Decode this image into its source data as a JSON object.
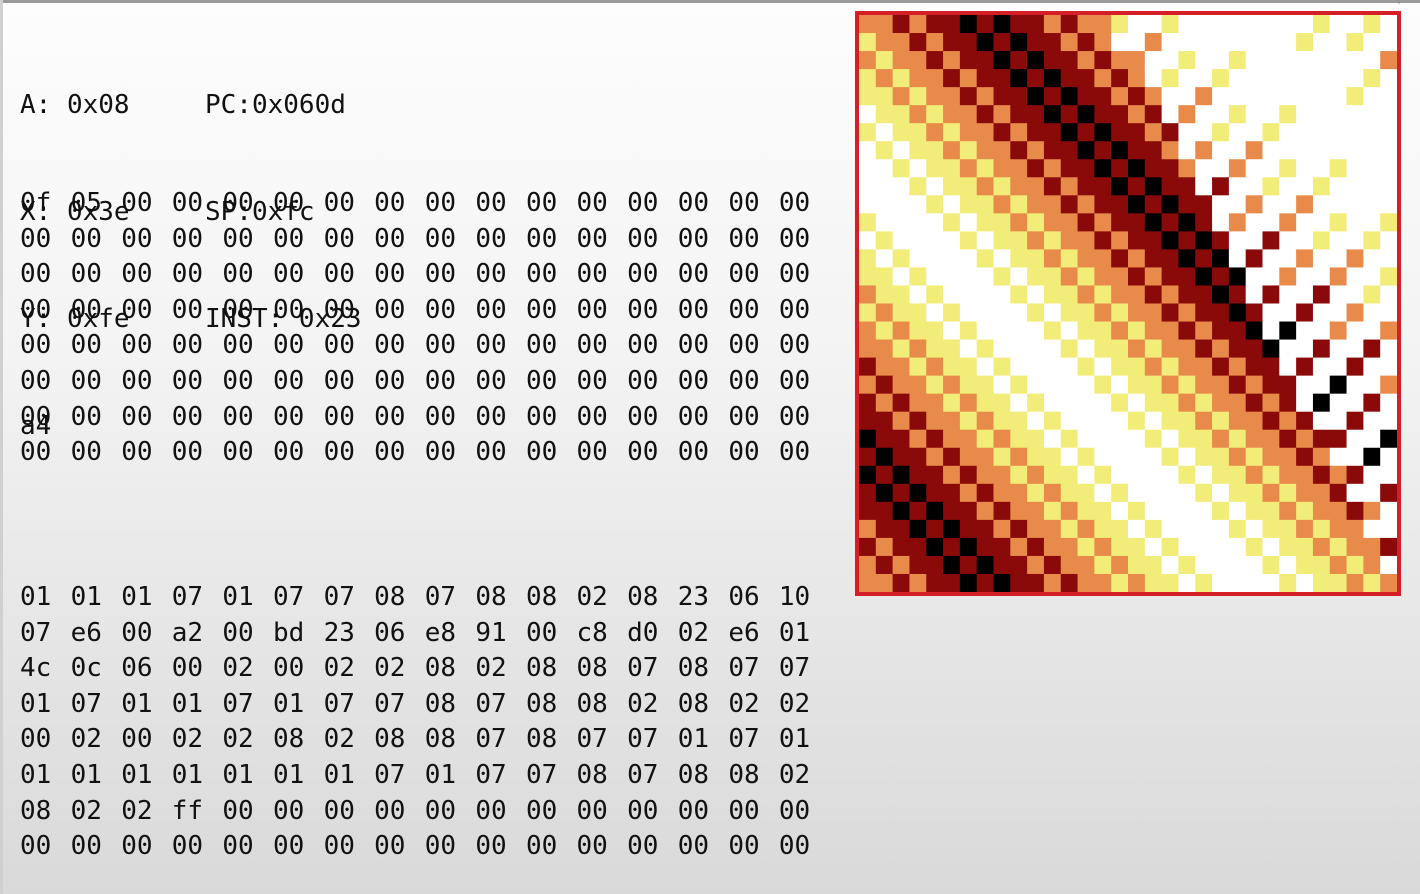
{
  "registers": {
    "a_label": "A: 0x08",
    "pc_label": "PC:0x060d",
    "x_label": "X: 0x3e",
    "sp_label": "SP:0xfc",
    "y_label": "Y: 0xfe",
    "inst_label": "INST: 0x23",
    "inst_cont": "a4"
  },
  "zero_page": [
    [
      "0f",
      "05",
      "00",
      "00",
      "00",
      "00",
      "00",
      "00",
      "00",
      "00",
      "00",
      "00",
      "00",
      "00",
      "00",
      "00"
    ],
    [
      "00",
      "00",
      "00",
      "00",
      "00",
      "00",
      "00",
      "00",
      "00",
      "00",
      "00",
      "00",
      "00",
      "00",
      "00",
      "00"
    ],
    [
      "00",
      "00",
      "00",
      "00",
      "00",
      "00",
      "00",
      "00",
      "00",
      "00",
      "00",
      "00",
      "00",
      "00",
      "00",
      "00"
    ],
    [
      "00",
      "00",
      "00",
      "00",
      "00",
      "00",
      "00",
      "00",
      "00",
      "00",
      "00",
      "00",
      "00",
      "00",
      "00",
      "00"
    ],
    [
      "00",
      "00",
      "00",
      "00",
      "00",
      "00",
      "00",
      "00",
      "00",
      "00",
      "00",
      "00",
      "00",
      "00",
      "00",
      "00"
    ],
    [
      "00",
      "00",
      "00",
      "00",
      "00",
      "00",
      "00",
      "00",
      "00",
      "00",
      "00",
      "00",
      "00",
      "00",
      "00",
      "00"
    ],
    [
      "00",
      "00",
      "00",
      "00",
      "00",
      "00",
      "00",
      "00",
      "00",
      "00",
      "00",
      "00",
      "00",
      "00",
      "00",
      "00"
    ],
    [
      "00",
      "00",
      "00",
      "00",
      "00",
      "00",
      "00",
      "00",
      "00",
      "00",
      "00",
      "00",
      "00",
      "00",
      "00",
      "00"
    ]
  ],
  "program_memory": [
    [
      "01",
      "01",
      "01",
      "07",
      "01",
      "07",
      "07",
      "08",
      "07",
      "08",
      "08",
      "02",
      "08",
      "23",
      "06",
      "10"
    ],
    [
      "07",
      "e6",
      "00",
      "a2",
      "00",
      "bd",
      "23",
      "06",
      "e8",
      "91",
      "00",
      "c8",
      "d0",
      "02",
      "e6",
      "01"
    ],
    [
      "4c",
      "0c",
      "06",
      "00",
      "02",
      "00",
      "02",
      "02",
      "08",
      "02",
      "08",
      "08",
      "07",
      "08",
      "07",
      "07"
    ],
    [
      "01",
      "07",
      "01",
      "01",
      "07",
      "01",
      "07",
      "07",
      "08",
      "07",
      "08",
      "08",
      "02",
      "08",
      "02",
      "02"
    ],
    [
      "00",
      "02",
      "00",
      "02",
      "02",
      "08",
      "02",
      "08",
      "08",
      "07",
      "08",
      "07",
      "07",
      "01",
      "07",
      "01"
    ],
    [
      "01",
      "01",
      "01",
      "01",
      "01",
      "01",
      "01",
      "07",
      "01",
      "07",
      "07",
      "08",
      "07",
      "08",
      "08",
      "02"
    ],
    [
      "08",
      "02",
      "02",
      "ff",
      "00",
      "00",
      "00",
      "00",
      "00",
      "00",
      "00",
      "00",
      "00",
      "00",
      "00",
      "00"
    ],
    [
      "00",
      "00",
      "00",
      "00",
      "00",
      "00",
      "00",
      "00",
      "00",
      "00",
      "00",
      "00",
      "00",
      "00",
      "00",
      "00"
    ]
  ],
  "screen": {
    "columns": 32,
    "rows": 32,
    "border_color": "#d41f26",
    "palette": {
      "00": "#000000",
      "01": "#ffffff",
      "02": "#8a0a0a",
      "07": "#f2ec78",
      "08": "#e88a4a"
    },
    "program_sequence": [
      "01",
      "01",
      "01",
      "07",
      "01",
      "07",
      "07",
      "08",
      "07",
      "08",
      "08",
      "02",
      "08",
      "02",
      "02",
      "00",
      "02",
      "00",
      "02",
      "02",
      "08",
      "02",
      "08",
      "08",
      "07",
      "08",
      "07",
      "07",
      "01",
      "07",
      "01"
    ]
  }
}
